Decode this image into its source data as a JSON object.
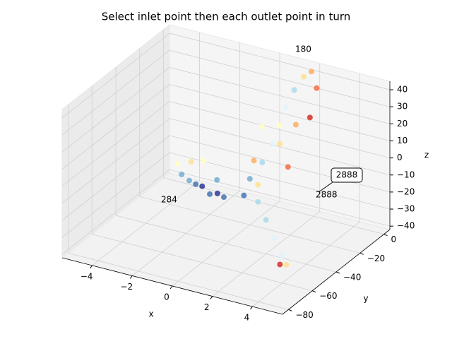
{
  "chart_data": {
    "type": "scatter3d",
    "title": "Select inlet point then each outlet point in turn",
    "xlabel": "x",
    "ylabel": "y",
    "zlabel": "z",
    "xlim": [
      -5.5,
      5.5
    ],
    "ylim": [
      -85,
      5
    ],
    "zlim": [
      -42,
      45
    ],
    "xticks": [
      {
        "value": -4,
        "label": "−4"
      },
      {
        "value": -2,
        "label": "−2"
      },
      0,
      2,
      4
    ],
    "yticks": [
      0,
      {
        "value": -20,
        "label": "−20"
      },
      {
        "value": -40,
        "label": "−40"
      },
      {
        "value": -60,
        "label": "−60"
      },
      {
        "value": -80,
        "label": "−80"
      }
    ],
    "zticks": [
      {
        "value": -40,
        "label": "−40"
      },
      {
        "value": -30,
        "label": "−30"
      },
      {
        "value": -20,
        "label": "−20"
      },
      {
        "value": -10,
        "label": "−10"
      },
      0,
      10,
      20,
      30,
      40
    ],
    "grid": true,
    "x": [
      -3,
      -2.5,
      -2,
      -1.5,
      -1,
      -3.5,
      -4,
      -2,
      0,
      -4.5,
      -4,
      -3.5,
      1,
      2,
      3,
      4,
      4.5,
      4,
      0,
      0.5,
      0.8,
      1,
      1.2,
      1.5,
      1.8,
      2,
      1.5,
      2,
      0.5,
      2.5,
      3,
      2.5,
      1,
      0
    ],
    "y": [
      -15,
      -18,
      -20,
      -22,
      -25,
      -12,
      -10,
      -14,
      -25,
      -5,
      -2,
      0,
      -30,
      -40,
      -50,
      -60,
      -65,
      -62,
      -20,
      -18,
      -15,
      -12,
      -10,
      -8,
      -5,
      -2,
      -20,
      -15,
      -25,
      -30,
      -20,
      -6,
      -30,
      -10
    ],
    "z": [
      -30,
      -28,
      -30,
      -27,
      -26,
      -31,
      -30,
      -25,
      -22,
      -28,
      -27,
      -26,
      -20,
      -22,
      -24,
      -26,
      -27,
      -30,
      -15,
      -5,
      5,
      15,
      25,
      35,
      42,
      44,
      10,
      20,
      0,
      5,
      30,
      38,
      -10,
      10
    ],
    "colors": [
      "#4575b4",
      "#313695",
      "#4575b4",
      "#313695",
      "#4575b4",
      "#74add1",
      "#74add1",
      "#74add1",
      "#4575b4",
      "#ffffbf",
      "#fee090",
      "#ffffbf",
      "#abd9e9",
      "#abd9e9",
      "#e0f3f8",
      "#e0f3f8",
      "#fee090",
      "#d73027",
      "#74add1",
      "#abd9e9",
      "#e0f3f8",
      "#ffffbf",
      "#e0f3f8",
      "#abd9e9",
      "#fee090",
      "#fdae61",
      "#fee090",
      "#fdae61",
      "#fdae61",
      "#f46d43",
      "#d73027",
      "#f46d43",
      "#fee090",
      "#ffffbf"
    ],
    "annotations": [
      "180",
      "284",
      "2888",
      "2888"
    ]
  }
}
